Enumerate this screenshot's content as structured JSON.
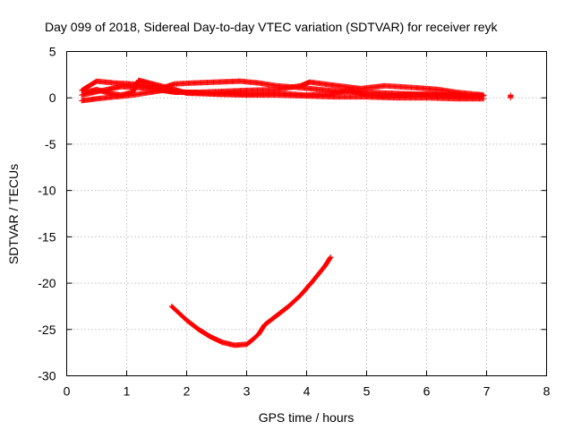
{
  "chart_data": {
    "type": "scatter",
    "title": "Day 099 of 2018, Sidereal Day-to-day VTEC variation (SDTVAR) for receiver reyk",
    "xlabel": "GPS time / hours",
    "ylabel": "SDTVAR / TECUs",
    "xlim": [
      0,
      8
    ],
    "ylim": [
      -30,
      5
    ],
    "xticks": [
      "0",
      "1",
      "2",
      "3",
      "4",
      "5",
      "6",
      "7",
      "8"
    ],
    "yticks": [
      "5",
      "0",
      "-5",
      "-10",
      "-15",
      "-20",
      "-25",
      "-30"
    ],
    "grid": true,
    "legend": "none",
    "marker": "+",
    "color": "#ff0000",
    "series": [
      {
        "name": "",
        "tracks": [
          {
            "x": [
              0.25,
              0.5,
              0.8,
              1.1,
              1.35,
              1.55,
              1.8,
              2.1,
              2.5,
              2.9,
              3.2,
              3.5,
              3.9,
              4.2,
              4.6,
              5.0,
              5.4,
              5.8,
              6.2,
              6.6,
              6.95
            ],
            "y": [
              0.8,
              1.8,
              1.6,
              1.5,
              1.3,
              1.0,
              1.5,
              1.6,
              1.7,
              1.8,
              1.6,
              1.3,
              1.1,
              0.9,
              0.7,
              0.6,
              0.5,
              0.4,
              0.3,
              0.2,
              0.2
            ]
          },
          {
            "x": [
              0.25,
              0.6,
              0.9,
              1.2,
              1.5,
              1.8,
              2.2,
              2.6,
              3.0,
              3.5,
              3.9,
              4.05,
              4.4,
              4.9,
              5.3,
              5.8,
              6.2,
              6.5,
              6.8,
              6.95
            ],
            "y": [
              0.3,
              0.8,
              1.2,
              1.1,
              0.9,
              0.6,
              0.6,
              0.7,
              0.8,
              0.9,
              1.3,
              1.7,
              1.4,
              1.0,
              1.3,
              1.1,
              0.9,
              0.6,
              0.4,
              0.3
            ]
          },
          {
            "x": [
              0.25,
              0.5,
              0.8,
              1.1,
              1.4,
              1.6,
              2.0,
              2.5,
              3.0,
              3.5,
              4.0,
              4.5,
              5.0,
              5.5,
              6.0,
              6.5,
              6.95
            ],
            "y": [
              -0.3,
              -0.1,
              0.1,
              0.3,
              0.6,
              0.8,
              0.6,
              0.4,
              0.3,
              0.3,
              0.2,
              0.1,
              0.1,
              0.0,
              0.0,
              -0.1,
              -0.1
            ]
          },
          {
            "x": [
              0.3,
              0.5,
              0.7,
              0.9,
              1.1,
              1.2,
              1.5,
              1.8,
              2.0,
              2.5,
              3.0,
              3.5,
              4.0,
              4.4,
              4.7,
              5.0,
              5.3,
              5.6,
              6.0,
              6.4,
              6.9
            ],
            "y": [
              0.6,
              0.9,
              0.5,
              0.3,
              0.6,
              1.9,
              1.4,
              0.9,
              0.5,
              0.4,
              0.4,
              0.5,
              0.3,
              0.4,
              0.8,
              0.3,
              0.2,
              0.3,
              0.4,
              0.3,
              0.2
            ]
          },
          {
            "x": [
              1.75,
              2.0,
              2.2,
              2.4,
              2.6,
              2.8,
              3.0,
              3.1,
              3.2,
              3.3,
              3.5,
              3.7,
              3.9,
              4.1,
              4.3,
              4.4
            ],
            "y": [
              -22.5,
              -24.0,
              -25.0,
              -25.8,
              -26.4,
              -26.7,
              -26.6,
              -26.1,
              -25.5,
              -24.5,
              -23.5,
              -22.5,
              -21.3,
              -19.8,
              -18.2,
              -17.2
            ]
          },
          {
            "x": [
              7.4,
              7.4
            ],
            "y": [
              0.3,
              0.0
            ]
          }
        ]
      }
    ]
  }
}
